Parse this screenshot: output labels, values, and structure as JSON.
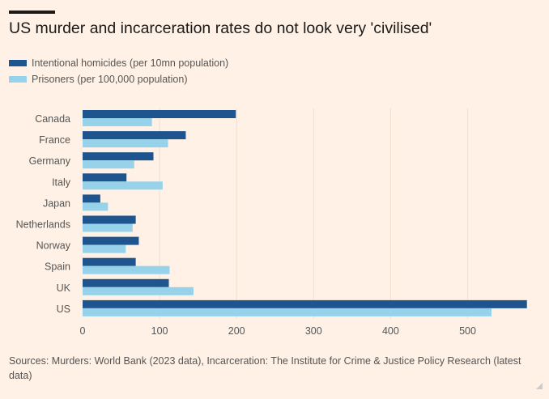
{
  "chart_data": {
    "type": "bar",
    "orientation": "horizontal",
    "title": "US murder and incarceration rates do not look very 'civilised'",
    "xlabel": "",
    "ylabel": "",
    "categories": [
      "Canada",
      "France",
      "Germany",
      "Italy",
      "Japan",
      "Netherlands",
      "Norway",
      "Spain",
      "UK",
      "US"
    ],
    "series": [
      {
        "name": "Intentional homicides (per 10mn population)",
        "color": "#1e558f",
        "values": [
          199,
          134,
          92,
          57,
          23,
          69,
          73,
          69,
          112,
          577
        ]
      },
      {
        "name": "Prisoners (per 100,000 population)",
        "color": "#96d3ea",
        "values": [
          90,
          111,
          67,
          104,
          33,
          65,
          56,
          113,
          144,
          531
        ]
      }
    ],
    "xlim": [
      0,
      600
    ],
    "xticks": [
      0,
      100,
      200,
      300,
      400,
      500
    ],
    "grid": true,
    "legend": "top-left"
  },
  "source": "Sources: Murders: World Bank (2023 data), Incarceration: The Institute for Crime & Justice Policy Research (latest data)"
}
